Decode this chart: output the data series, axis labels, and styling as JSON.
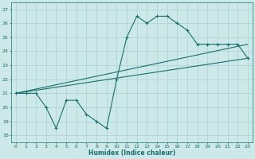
{
  "title": "",
  "xlabel": "Humidex (Indice chaleur)",
  "xlim": [
    -0.5,
    23.5
  ],
  "ylim": [
    17.5,
    27.5
  ],
  "xticks": [
    0,
    1,
    2,
    3,
    4,
    5,
    6,
    7,
    8,
    9,
    10,
    11,
    12,
    13,
    14,
    15,
    16,
    17,
    18,
    19,
    20,
    21,
    22,
    23
  ],
  "yticks": [
    18,
    19,
    20,
    21,
    22,
    23,
    24,
    25,
    26,
    27
  ],
  "bg_color": "#cce8e8",
  "line_color": "#1a6e6e",
  "grid_color": "#b0d4d4",
  "series1_x": [
    0,
    1,
    2,
    3,
    4,
    5,
    6,
    7,
    8,
    9,
    10,
    11,
    12,
    13,
    14,
    15,
    16,
    17,
    18,
    19,
    20,
    21,
    22,
    23
  ],
  "series1_y": [
    21,
    21,
    21,
    20,
    18.5,
    20.5,
    20.5,
    19.5,
    19,
    18.5,
    22,
    25,
    26.5,
    26,
    26.5,
    26.5,
    26,
    25.5,
    24.5,
    24.5,
    24.5,
    24.5,
    24.5,
    23.5
  ],
  "series2_x": [
    0,
    23
  ],
  "series2_y": [
    21,
    23.5
  ],
  "series3_x": [
    0,
    23
  ],
  "series3_y": [
    21,
    24.5
  ],
  "marker_x": [
    0,
    1,
    2,
    3,
    4,
    5,
    6,
    7,
    8,
    9,
    10,
    11,
    12,
    13,
    14,
    15,
    16,
    17,
    18,
    19,
    20,
    21,
    22,
    23
  ],
  "marker_y": [
    21,
    21,
    21,
    20,
    18.5,
    20.5,
    20.5,
    19.5,
    19,
    18.5,
    22,
    25,
    26.5,
    26,
    26.5,
    26.5,
    26,
    25.5,
    24.5,
    24.5,
    24.5,
    24.5,
    24.5,
    23.5
  ]
}
